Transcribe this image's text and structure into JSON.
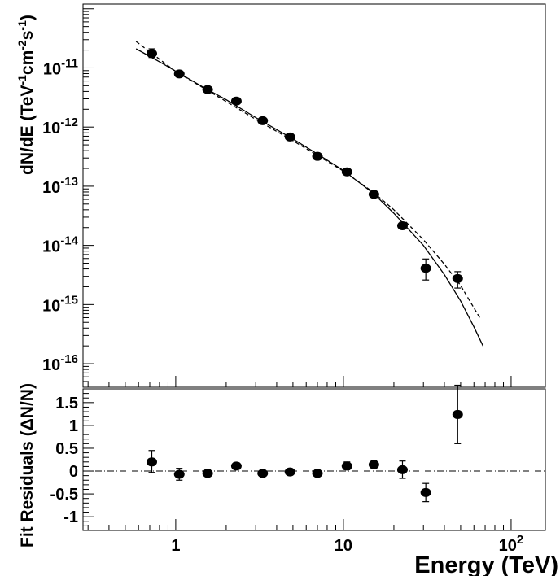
{
  "chart_data": [
    {
      "type": "scatter",
      "panel": "spectrum",
      "xscale": "log",
      "yscale": "log",
      "xlim": [
        0.28,
        160
      ],
      "ylim": [
        4e-17,
        1.2e-10
      ],
      "ylabel": "dN/dE (TeV-1cm-2s-1)",
      "ylabel_parts": {
        "a": "dN/dE (TeV",
        "b": "-1",
        "c": "cm",
        "d": "-2",
        "e": "s",
        "f": "-1",
        "g": ")"
      },
      "y_tick_labels": [
        {
          "value": 1e-11,
          "base": "10",
          "exp": "-11"
        },
        {
          "value": 1e-12,
          "base": "10",
          "exp": "-12"
        },
        {
          "value": 1e-13,
          "base": "10",
          "exp": "-13"
        },
        {
          "value": 1e-14,
          "base": "10",
          "exp": "-14"
        },
        {
          "value": 1e-15,
          "base": "10",
          "exp": "-15"
        },
        {
          "value": 1e-16,
          "base": "10",
          "exp": "-16"
        }
      ],
      "points": [
        {
          "x": 0.72,
          "y": 1.75e-11,
          "ylo": 1.5e-11,
          "yhi": 2.1e-11
        },
        {
          "x": 1.05,
          "y": 7.9e-12,
          "ylo": 7.1e-12,
          "yhi": 8.8e-12
        },
        {
          "x": 1.55,
          "y": 4.3e-12,
          "ylo": 4e-12,
          "yhi": 4.6e-12
        },
        {
          "x": 2.3,
          "y": 2.75e-12,
          "ylo": 2.6e-12,
          "yhi": 2.9e-12
        },
        {
          "x": 3.3,
          "y": 1.28e-12,
          "ylo": 1.22e-12,
          "yhi": 1.34e-12
        },
        {
          "x": 4.8,
          "y": 6.8e-13,
          "ylo": 6.5e-13,
          "yhi": 7.1e-13
        },
        {
          "x": 7.0,
          "y": 3.2e-13,
          "ylo": 3.05e-13,
          "yhi": 3.35e-13
        },
        {
          "x": 10.5,
          "y": 1.75e-13,
          "ylo": 1.65e-13,
          "yhi": 1.85e-13
        },
        {
          "x": 15.2,
          "y": 7.3e-14,
          "ylo": 6.8e-14,
          "yhi": 7.8e-14
        },
        {
          "x": 22.5,
          "y": 2.15e-14,
          "ylo": 1.9e-14,
          "yhi": 2.45e-14
        },
        {
          "x": 31.0,
          "y": 4.1e-15,
          "ylo": 2.6e-15,
          "yhi": 5.9e-15
        },
        {
          "x": 48.0,
          "y": 2.75e-15,
          "ylo": 1.9e-15,
          "yhi": 3.6e-15
        }
      ],
      "curves": [
        {
          "style": "solid",
          "points": [
            [
              0.58,
              2.1e-11
            ],
            [
              0.8,
              1.27e-11
            ],
            [
              1.0,
              8.8e-12
            ],
            [
              1.5,
              4.5e-12
            ],
            [
              2.0,
              2.9e-12
            ],
            [
              3.0,
              1.45e-12
            ],
            [
              5.0,
              6.3e-13
            ],
            [
              7.0,
              3.5e-13
            ],
            [
              10.0,
              1.85e-13
            ],
            [
              15.0,
              7.7e-14
            ],
            [
              20.0,
              3.5e-14
            ],
            [
              30.0,
              1e-14
            ],
            [
              40.0,
              3.2e-15
            ],
            [
              50.0,
              1.15e-15
            ],
            [
              60.0,
              4.2e-16
            ],
            [
              68.0,
              2e-16
            ]
          ]
        },
        {
          "style": "dashed",
          "points": [
            [
              0.58,
              2.8e-11
            ],
            [
              1.0,
              8.7e-12
            ],
            [
              2.0,
              2.7e-12
            ],
            [
              3.0,
              1.35e-12
            ],
            [
              5.0,
              5.9e-13
            ],
            [
              10.0,
              1.8e-13
            ],
            [
              15.0,
              8e-14
            ],
            [
              20.0,
              4e-14
            ],
            [
              30.0,
              1.25e-14
            ],
            [
              40.0,
              4.8e-15
            ],
            [
              50.0,
              2.1e-15
            ],
            [
              65.0,
              6e-16
            ]
          ]
        }
      ]
    },
    {
      "type": "scatter",
      "panel": "residuals",
      "xscale": "log",
      "xlim": [
        0.28,
        160
      ],
      "ylim": [
        -1.3,
        1.8
      ],
      "ylabel": "Fit Residuals (ΔN/N)",
      "ylabel_main": "Fit Residuals",
      "ylabel_sub": "(ΔN/N)",
      "xlabel": "Energy (TeV)",
      "y_tick_labels": [
        {
          "value": 1.5,
          "text": "1.5"
        },
        {
          "value": 1.0,
          "text": "1"
        },
        {
          "value": 0.5,
          "text": "0.5"
        },
        {
          "value": 0.0,
          "text": "0"
        },
        {
          "value": -0.5,
          "text": "-0.5"
        },
        {
          "value": -1.0,
          "text": "-1"
        }
      ],
      "x_tick_labels": [
        {
          "value": 1,
          "base": "1",
          "exp": ""
        },
        {
          "value": 10,
          "base": "10",
          "exp": ""
        },
        {
          "value": 100,
          "base": "10",
          "exp": "2"
        }
      ],
      "reference_line": 0,
      "points": [
        {
          "x": 0.72,
          "y": 0.2,
          "ylo": -0.03,
          "yhi": 0.45
        },
        {
          "x": 1.05,
          "y": -0.07,
          "ylo": -0.2,
          "yhi": 0.06
        },
        {
          "x": 1.55,
          "y": -0.05,
          "ylo": -0.12,
          "yhi": 0.04
        },
        {
          "x": 2.3,
          "y": 0.11,
          "ylo": 0.04,
          "yhi": 0.18
        },
        {
          "x": 3.3,
          "y": -0.05,
          "ylo": -0.1,
          "yhi": 0.0
        },
        {
          "x": 4.8,
          "y": -0.02,
          "ylo": -0.07,
          "yhi": 0.03
        },
        {
          "x": 7.0,
          "y": -0.05,
          "ylo": -0.12,
          "yhi": 0.02
        },
        {
          "x": 10.5,
          "y": 0.11,
          "ylo": 0.03,
          "yhi": 0.2
        },
        {
          "x": 15.2,
          "y": 0.14,
          "ylo": 0.05,
          "yhi": 0.23
        },
        {
          "x": 22.5,
          "y": 0.03,
          "ylo": -0.16,
          "yhi": 0.22
        },
        {
          "x": 31.0,
          "y": -0.47,
          "ylo": -0.67,
          "yhi": -0.27
        },
        {
          "x": 48.0,
          "y": 1.24,
          "ylo": 0.6,
          "yhi": 1.88
        }
      ]
    }
  ]
}
